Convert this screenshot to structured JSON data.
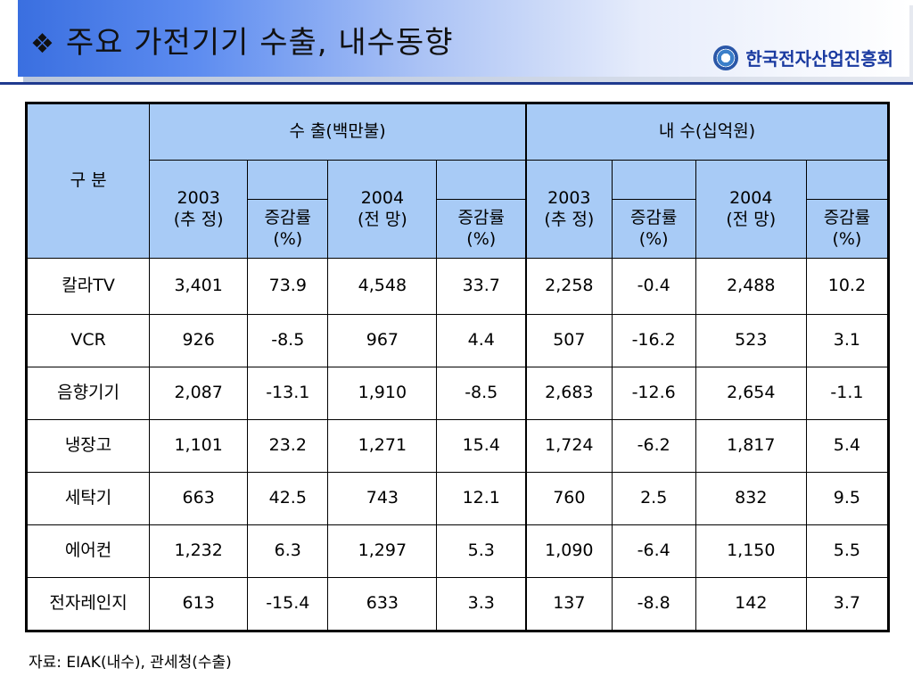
{
  "title": {
    "bullet": "❖",
    "text": "주요 가전기기 수출, 내수동향"
  },
  "org": {
    "logo_icon": "kea-logo-icon",
    "name": "한국전자산업진흥회"
  },
  "table": {
    "gubun": "구 분",
    "export_group": "수     출(백만불)",
    "domestic_group": "내     수(십억원)",
    "col_2003_year": "2003",
    "col_2003_sub": "(추 정)",
    "col_2004_year": "2004",
    "col_2004_sub": "(전 망)",
    "growth_top": "증감률",
    "growth_unit": "(%)",
    "rows": [
      {
        "name": "칼라TV",
        "values": [
          "3,401",
          "73.9",
          "4,548",
          "33.7",
          "2,258",
          "-0.4",
          "2,488",
          "10.2"
        ]
      },
      {
        "name": "VCR",
        "values": [
          "926",
          "-8.5",
          "967",
          "4.4",
          "507",
          "-16.2",
          "523",
          "3.1"
        ]
      },
      {
        "name": "음향기기",
        "values": [
          "2,087",
          "-13.1",
          "1,910",
          "-8.5",
          "2,683",
          "-12.6",
          "2,654",
          "-1.1"
        ]
      },
      {
        "name": "냉장고",
        "values": [
          "1,101",
          "23.2",
          "1,271",
          "15.4",
          "1,724",
          "-6.2",
          "1,817",
          "5.4"
        ]
      },
      {
        "name": "세탁기",
        "values": [
          "663",
          "42.5",
          "743",
          "12.1",
          "760",
          "2.5",
          "832",
          "9.5"
        ]
      },
      {
        "name": "에어컨",
        "values": [
          "1,232",
          "6.3",
          "1,297",
          "5.3",
          "1,090",
          "-6.4",
          "1,150",
          "5.5"
        ]
      },
      {
        "name": "전자레인지",
        "values": [
          "613",
          "-15.4",
          "633",
          "3.3",
          "137",
          "-8.8",
          "142",
          "3.7"
        ]
      }
    ]
  },
  "footer": {
    "source": "자료: EIAK(내수), 관세청(수출)"
  },
  "colors": {
    "header_fill": "#a8cbf6",
    "title_gradient_start": "#3a6fe0",
    "org_text": "#1a3aa0",
    "rule": "#1f3a8f"
  }
}
